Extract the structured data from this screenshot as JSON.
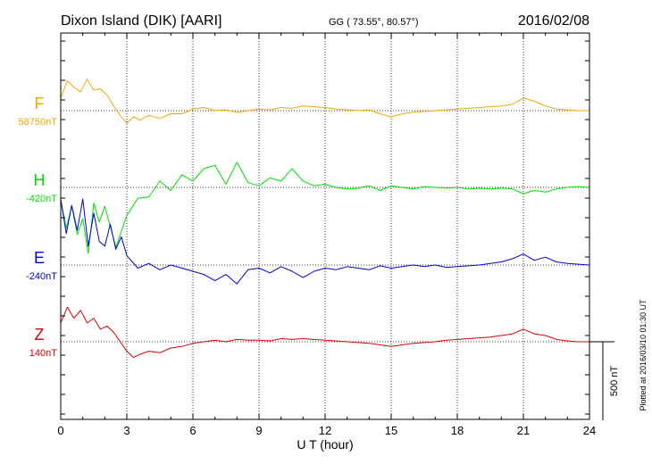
{
  "chart_data": {
    "type": "line",
    "title": "Dixon Island (DIK)  [AARI]",
    "coords": "GG ( 73.55°,  80.57°)",
    "date": "2016/02/08",
    "xlabel": "U T (hour)",
    "xlim": [
      0,
      24
    ],
    "xticks": [
      "0",
      "3",
      "6",
      "9",
      "12",
      "15",
      "18",
      "21",
      "24"
    ],
    "scale_label": "500 nT",
    "scale_nT": 500,
    "plotted_note": "Plotted at 2016/03/10 01:30 UT",
    "grid": true,
    "series": [
      {
        "name": "F",
        "baseline_label": "58750nT",
        "baseline_nT": 58750,
        "color": "#f0a800",
        "x": [
          0,
          0.3,
          0.6,
          0.9,
          1.2,
          1.5,
          1.8,
          2.1,
          2.4,
          2.7,
          3.0,
          3.3,
          3.6,
          4.0,
          4.5,
          5.0,
          5.5,
          6.0,
          6.5,
          7.0,
          7.5,
          8.0,
          8.5,
          9.0,
          9.5,
          10.0,
          10.5,
          11.0,
          11.5,
          12.0,
          12.5,
          13.0,
          13.5,
          14.0,
          14.5,
          15.0,
          15.5,
          16.0,
          16.5,
          17.0,
          17.5,
          18.0,
          18.5,
          19.0,
          19.5,
          20.0,
          20.5,
          21.0,
          21.5,
          22.0,
          22.5,
          23.0,
          23.5,
          24.0
        ],
        "y": [
          80,
          190,
          150,
          120,
          200,
          130,
          140,
          100,
          30,
          -30,
          -80,
          -40,
          -60,
          -30,
          -50,
          -20,
          -20,
          10,
          20,
          0,
          5,
          -10,
          0,
          10,
          5,
          20,
          15,
          30,
          25,
          20,
          10,
          5,
          0,
          5,
          -20,
          -40,
          -20,
          -10,
          -5,
          0,
          5,
          10,
          15,
          20,
          25,
          30,
          40,
          80,
          60,
          30,
          10,
          5,
          0,
          0
        ]
      },
      {
        "name": "H",
        "baseline_label": "-420nT",
        "baseline_nT": -420,
        "color": "#00dd00",
        "x": [
          0,
          0.25,
          0.5,
          0.75,
          1.0,
          1.25,
          1.5,
          1.75,
          2.0,
          2.25,
          2.5,
          2.75,
          3.0,
          3.5,
          4.0,
          4.5,
          5.0,
          5.5,
          6.0,
          6.5,
          7.0,
          7.5,
          8.0,
          8.5,
          9.0,
          9.5,
          10.0,
          10.5,
          11.0,
          11.5,
          12.0,
          12.5,
          13.0,
          13.5,
          14.0,
          14.5,
          15.0,
          15.5,
          16.0,
          16.5,
          17.0,
          17.5,
          18.0,
          18.5,
          19.0,
          19.5,
          20.0,
          20.5,
          21.0,
          21.5,
          22.0,
          22.5,
          23.0,
          23.5,
          24.0
        ],
        "y": [
          -80,
          -260,
          -120,
          -300,
          -200,
          -420,
          -100,
          -220,
          -120,
          -250,
          -380,
          -280,
          -180,
          -70,
          -60,
          40,
          -20,
          80,
          40,
          120,
          140,
          20,
          160,
          30,
          10,
          60,
          40,
          120,
          40,
          10,
          20,
          0,
          -10,
          -5,
          10,
          -20,
          10,
          0,
          -10,
          5,
          0,
          -5,
          0,
          -10,
          -5,
          -10,
          -5,
          -10,
          -40,
          -20,
          -30,
          -10,
          0,
          5,
          0
        ]
      },
      {
        "name": "E",
        "baseline_label": "-240nT",
        "baseline_nT": -240,
        "color": "#0000dd",
        "x": [
          0,
          0.25,
          0.5,
          0.75,
          1.0,
          1.25,
          1.5,
          1.75,
          2.0,
          2.25,
          2.5,
          2.75,
          3.0,
          3.5,
          4.0,
          4.5,
          5.0,
          5.5,
          6.0,
          6.5,
          7.0,
          7.5,
          8.0,
          8.5,
          9.0,
          9.5,
          10.0,
          10.5,
          11.0,
          11.5,
          12.0,
          12.5,
          13.0,
          13.5,
          14.0,
          14.5,
          15.0,
          15.5,
          16.0,
          16.5,
          17.0,
          17.5,
          18.0,
          18.5,
          19.0,
          19.5,
          20.0,
          20.5,
          21.0,
          21.5,
          22.0,
          22.5,
          23.0,
          23.5,
          24.0
        ],
        "y": [
          420,
          200,
          380,
          220,
          420,
          120,
          330,
          150,
          120,
          260,
          100,
          180,
          60,
          -20,
          10,
          -30,
          0,
          -20,
          -40,
          -60,
          -100,
          -60,
          -120,
          -30,
          -20,
          -50,
          -10,
          -40,
          -80,
          -40,
          -20,
          -30,
          -10,
          -20,
          -30,
          -5,
          -20,
          -10,
          0,
          -10,
          0,
          -15,
          -10,
          -5,
          0,
          10,
          20,
          40,
          70,
          30,
          50,
          20,
          10,
          5,
          0
        ]
      },
      {
        "name": "Z",
        "baseline_label": "140nT",
        "baseline_nT": 140,
        "color": "#dd0000",
        "x": [
          0,
          0.3,
          0.6,
          0.9,
          1.2,
          1.5,
          1.8,
          2.1,
          2.4,
          2.7,
          3.0,
          3.3,
          3.6,
          4.0,
          4.5,
          5.0,
          5.5,
          6.0,
          6.5,
          7.0,
          7.5,
          8.0,
          8.5,
          9.0,
          9.5,
          10.0,
          10.5,
          11.0,
          11.5,
          12.0,
          12.5,
          13.0,
          13.5,
          14.0,
          14.5,
          15.0,
          15.5,
          16.0,
          16.5,
          17.0,
          17.5,
          18.0,
          18.5,
          19.0,
          19.5,
          20.0,
          20.5,
          21.0,
          21.5,
          22.0,
          22.5,
          23.0,
          23.5,
          24.0
        ],
        "y": [
          120,
          220,
          150,
          200,
          120,
          150,
          80,
          100,
          60,
          0,
          -60,
          -100,
          -80,
          -60,
          -70,
          -40,
          -30,
          -10,
          0,
          10,
          0,
          15,
          10,
          10,
          5,
          20,
          15,
          20,
          15,
          10,
          5,
          0,
          -5,
          -10,
          -20,
          -30,
          -20,
          -10,
          -5,
          0,
          10,
          15,
          20,
          25,
          30,
          40,
          50,
          80,
          50,
          40,
          15,
          5,
          0,
          0
        ]
      }
    ]
  }
}
